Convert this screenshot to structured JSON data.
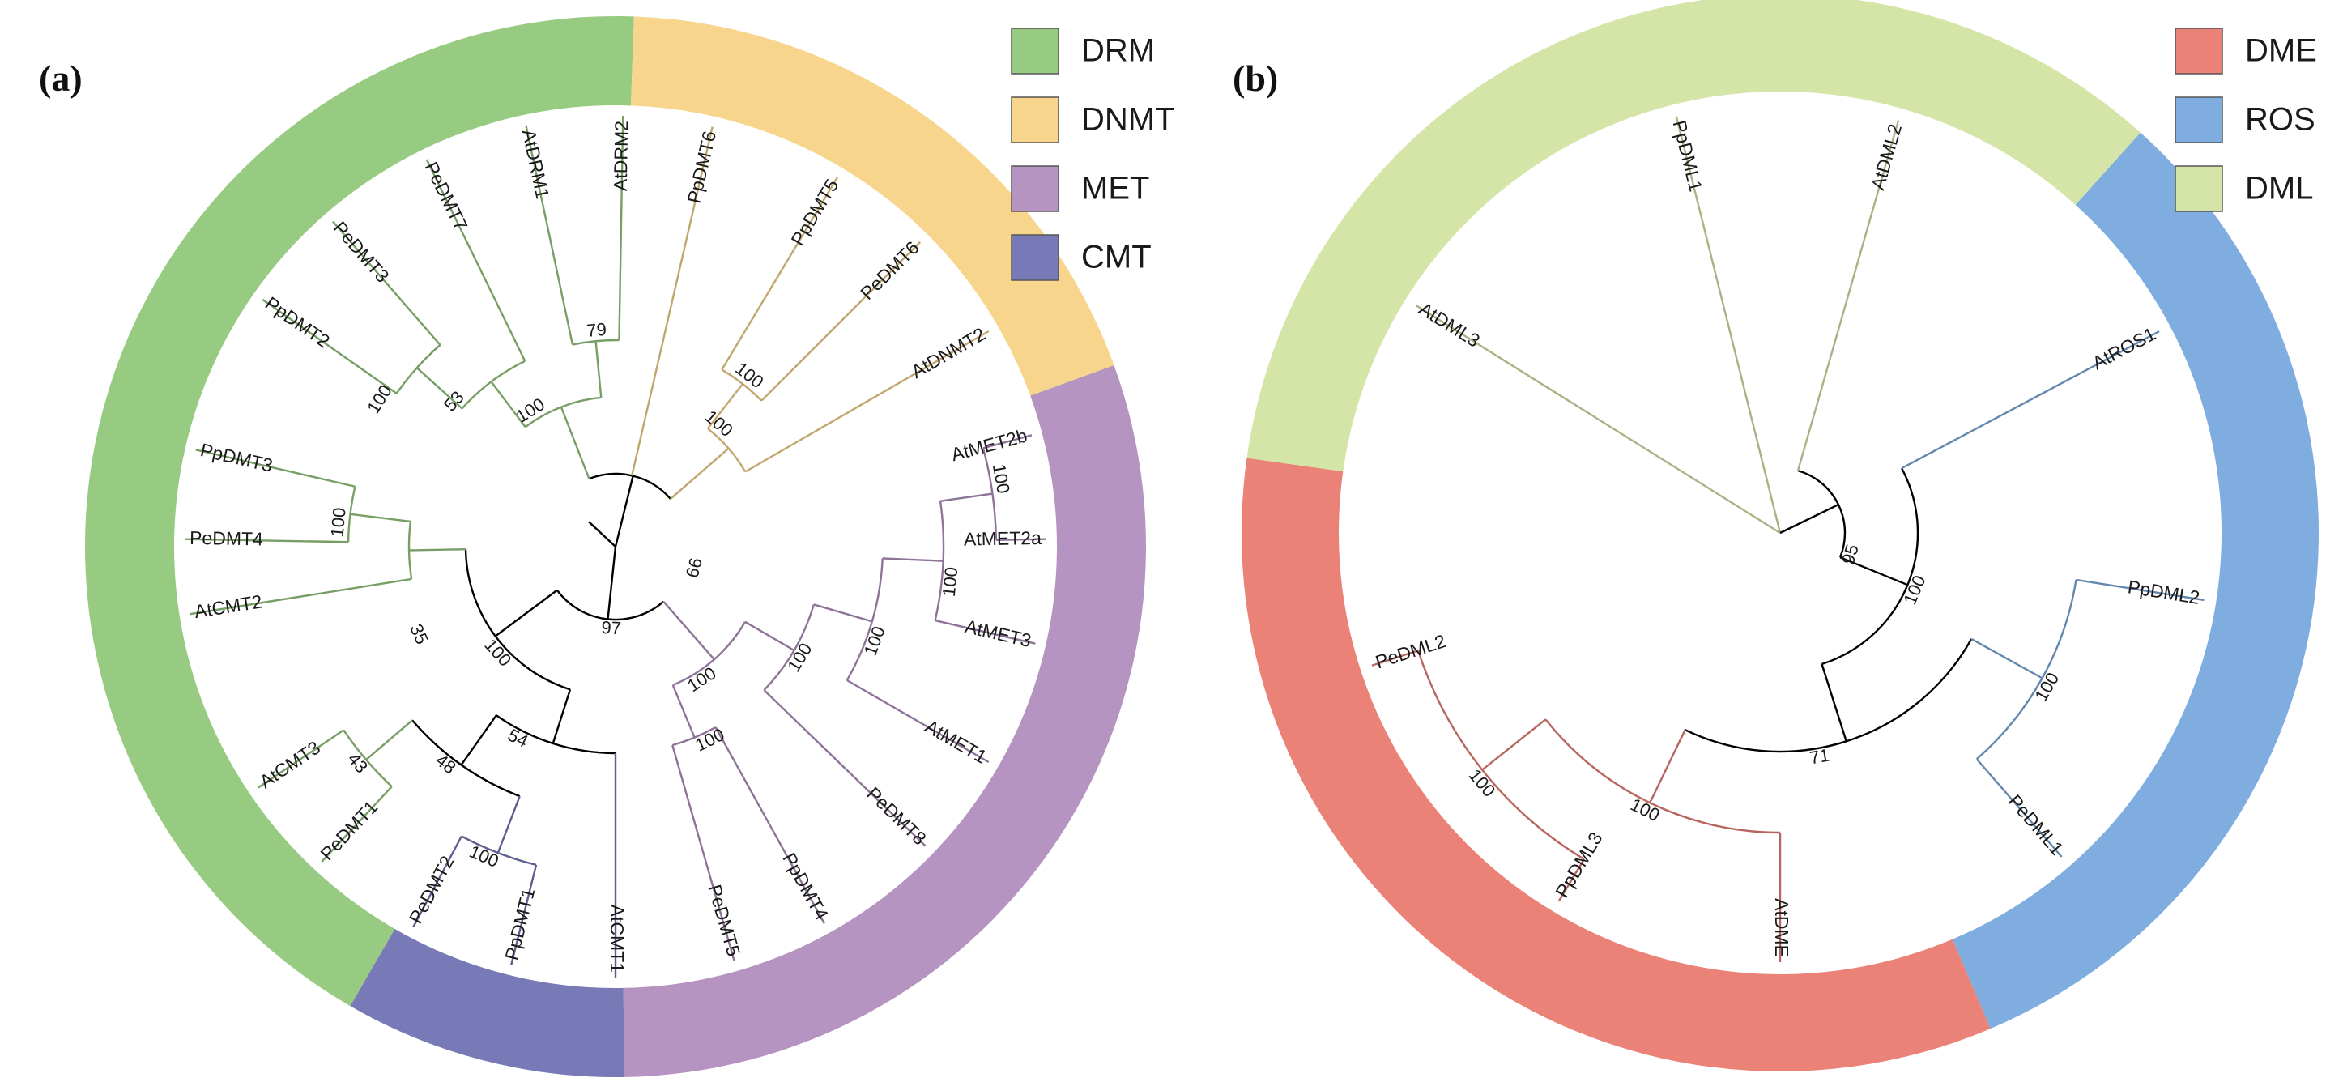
{
  "panels": [
    {
      "id": "a",
      "panel_label": "(a)",
      "legend": [
        {
          "name": "DRM",
          "color": "#98cb82"
        },
        {
          "name": "DNMT",
          "color": "#f7d58c"
        },
        {
          "name": "MET",
          "color": "#b594c2"
        },
        {
          "name": "CMT",
          "color": "#7879b7"
        }
      ],
      "ring": [
        {
          "group": "DRM",
          "from": 120,
          "to": 272
        },
        {
          "group": "DNMT",
          "from": 272,
          "to": 340
        },
        {
          "group": "MET",
          "from": 340,
          "to": 449
        },
        {
          "group": "CMT",
          "from": 449,
          "to": 480
        }
      ],
      "tree": {
        "children": [
          {
            "stub": true,
            "a": 223
          },
          {
            "support": "97",
            "support_a": 93,
            "children": [
              {
                "support": "100",
                "support_a": 138,
                "children": [
                  {
                    "support": "35",
                    "support_a": 156,
                    "children": [
                      {
                        "name": "AtCMT2",
                        "a": 171
                      },
                      {
                        "support": "100",
                        "support_a": 185,
                        "children": [
                          {
                            "name": "PeDMT4",
                            "a": 181
                          },
                          {
                            "name": "PpDMT3",
                            "a": 193
                          }
                        ]
                      }
                    ]
                  },
                  {
                    "support": "54",
                    "support_a": 117,
                    "children": [
                      {
                        "name": "AtCMT1",
                        "a": 90
                      },
                      {
                        "support": "48",
                        "support_a": 128,
                        "children": [
                          {
                            "support": "43",
                            "support_a": 140,
                            "children": [
                              {
                                "name": "AtCMT3",
                                "a": 146
                              },
                              {
                                "name": "PeDMT1",
                                "a": 133
                              }
                            ]
                          },
                          {
                            "support": "100",
                            "support_a": 113,
                            "children": [
                              {
                                "name": "PeDMT2",
                                "a": 118
                              },
                              {
                                "name": "PpDMT1",
                                "a": 104
                              }
                            ]
                          }
                        ]
                      }
                    ]
                  }
                ]
              },
              {
                "support": "100",
                "support_a": 57,
                "children": [
                  {
                    "support": "100",
                    "support_a": 64,
                    "children": [
                      {
                        "name": "PeDMT5",
                        "a": 74
                      },
                      {
                        "name": "PpDMT4",
                        "a": 61
                      }
                    ]
                  },
                  {
                    "support": "100",
                    "support_a": 31,
                    "children": [
                      {
                        "name": "PeDMT8",
                        "a": 44
                      },
                      {
                        "support": "100",
                        "support_a": 20,
                        "children": [
                          {
                            "name": "AtMET1",
                            "a": 30
                          },
                          {
                            "support": "100",
                            "support_a": 6,
                            "children": [
                              {
                                "name": "AtMET3",
                                "a": 13
                              },
                              {
                                "support": "100",
                                "support_a": 350,
                                "children": [
                                  {
                                    "name": "AtMET2a",
                                    "a": 359
                                  },
                                  {
                                    "name": "AtMET2b",
                                    "a": 345
                                  }
                                ]
                              }
                            ]
                          }
                        ]
                      }
                    ]
                  }
                ]
              }
            ]
          },
          {
            "support": "66",
            "support_a": 15,
            "children": [
              {
                "name": "PpDMT6",
                "a": 283
              },
              {
                "support": "100",
                "support_a": 310,
                "children": [
                  {
                    "name": "AtDNMT2",
                    "a": 330
                  },
                  {
                    "support": "100",
                    "support_a": 308,
                    "children": [
                      {
                        "name": "PeDMT6",
                        "a": 315
                      },
                      {
                        "name": "PpDMT5",
                        "a": 301
                      }
                    ]
                  }
                ]
              },
              {
                "support": "100",
                "support_a": 238,
                "children": [
                  {
                    "support": "53",
                    "support_a": 222,
                    "children": [
                      {
                        "support": "100",
                        "support_a": 212,
                        "children": [
                          {
                            "name": "PpDMT2",
                            "a": 215
                          },
                          {
                            "name": "PeDMT3",
                            "a": 229
                          }
                        ]
                      },
                      {
                        "name": "PeDMT7",
                        "a": 244
                      }
                    ]
                  },
                  {
                    "support": "79",
                    "support_a": 265,
                    "children": [
                      {
                        "name": "AtDRM1",
                        "a": 258
                      },
                      {
                        "name": "AtDRM2",
                        "a": 271
                      }
                    ]
                  }
                ]
              }
            ]
          }
        ]
      }
    },
    {
      "id": "b",
      "panel_label": "(b)",
      "legend": [
        {
          "name": "DME",
          "color": "#eb8278"
        },
        {
          "name": "ROS",
          "color": "#7fade0"
        },
        {
          "name": "DML",
          "color": "#d5e5a8"
        }
      ],
      "ring": [
        {
          "group": "DME",
          "from": 67,
          "to": 188
        },
        {
          "group": "DML",
          "from": 188,
          "to": 312
        },
        {
          "group": "ROS",
          "from": 312,
          "to": 427
        }
      ],
      "tree": {
        "children": [
          {
            "name": "AtDML3",
            "a": 212
          },
          {
            "name": "PpDML1",
            "a": 256
          },
          {
            "support": "95",
            "support_a": 17,
            "children": [
              {
                "name": "AtDML2",
                "a": 286
              },
              {
                "support": "100",
                "support_a": 23,
                "children": [
                  {
                    "name": "AtROS1",
                    "a": 332
                  },
                  {
                    "support": "71",
                    "support_a": 80,
                    "children": [
                      {
                        "support": "100",
                        "support_a": 30,
                        "children": [
                          {
                            "name": "PpDML2",
                            "a": 9
                          },
                          {
                            "name": "PeDML1",
                            "a": 49
                          }
                        ]
                      },
                      {
                        "support": "100",
                        "support_a": 116,
                        "children": [
                          {
                            "name": "AtDME",
                            "a": 90
                          },
                          {
                            "support": "100",
                            "support_a": 140,
                            "children": [
                              {
                                "name": "PpDML3",
                                "a": 121
                              },
                              {
                                "name": "PeDML2",
                                "a": 162
                              }
                            ]
                          }
                        ]
                      }
                    ]
                  }
                ]
              }
            ]
          }
        ]
      }
    }
  ]
}
